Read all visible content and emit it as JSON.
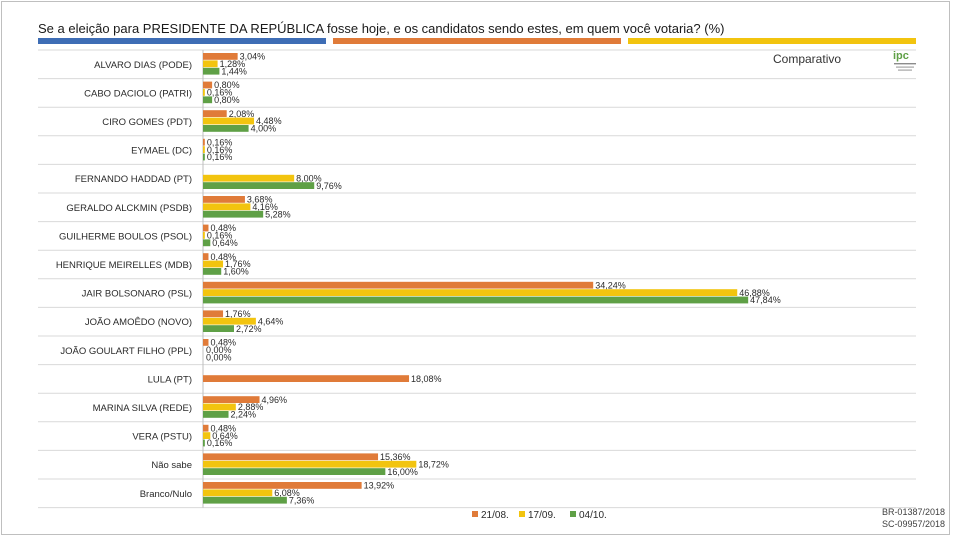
{
  "title": "Se a eleição para PRESIDENTE DA REPÚBLICA fosse hoje, e os candidatos sendo estes, em quem você votaria? (%)",
  "subtitle": "Comparativo",
  "logo": {
    "text": "ipc",
    "icon": "ipc-logo-icon"
  },
  "source_lines": [
    "BR-01387/2018",
    "SC-09957/2018"
  ],
  "stripe_colors": [
    "#3e6db5",
    "#e07b39",
    "#f2c40f"
  ],
  "chart_data": {
    "type": "bar",
    "orientation": "horizontal",
    "title": "Se a eleição para PRESIDENTE DA REPÚBLICA fosse hoje, e os candidatos sendo estes, em quem você votaria? (%)",
    "xlim": [
      0,
      48
    ],
    "grid": false,
    "legend_position": "bottom",
    "categories": [
      "ALVARO DIAS (PODE)",
      "CABO DACIOLO (PATRI)",
      "CIRO GOMES (PDT)",
      "EYMAEL (DC)",
      "FERNANDO HADDAD (PT)",
      "GERALDO ALCKMIN (PSDB)",
      "GUILHERME BOULOS (PSOL)",
      "HENRIQUE MEIRELLES (MDB)",
      "JAIR BOLSONARO (PSL)",
      "JOÃO AMOÊDO (NOVO)",
      "JOÃO GOULART FILHO (PPL)",
      "LULA (PT)",
      "MARINA SILVA (REDE)",
      "VERA (PSTU)",
      "Não sabe",
      "Branco/Nulo"
    ],
    "series": [
      {
        "name": "21/08.",
        "color": "#e07b39",
        "values": [
          3.04,
          0.8,
          2.08,
          0.16,
          null,
          3.68,
          0.48,
          0.48,
          34.24,
          1.76,
          0.48,
          18.08,
          4.96,
          0.48,
          15.36,
          13.92
        ],
        "labels": [
          "3,04%",
          "0,80%",
          "2,08%",
          "0,16%",
          null,
          "3,68%",
          "0,48%",
          "0,48%",
          "34,24%",
          "1,76%",
          "0,48%",
          "18,08%",
          "4,96%",
          "0,48%",
          "15,36%",
          "13,92%"
        ]
      },
      {
        "name": "17/09.",
        "color": "#f2c40f",
        "values": [
          1.28,
          0.16,
          4.48,
          0.16,
          8.0,
          4.16,
          0.16,
          1.76,
          46.88,
          4.64,
          0.0,
          null,
          2.88,
          0.64,
          18.72,
          6.08
        ],
        "labels": [
          "1,28%",
          "0,16%",
          "4,48%",
          "0,16%",
          "8,00%",
          "4,16%",
          "0,16%",
          "1,76%",
          "46,88%",
          "4,64%",
          "0,00%",
          null,
          "2,88%",
          "0,64%",
          "18,72%",
          "6,08%"
        ]
      },
      {
        "name": "04/10.",
        "color": "#5fa046",
        "values": [
          1.44,
          0.8,
          4.0,
          0.16,
          9.76,
          5.28,
          0.64,
          1.6,
          47.84,
          2.72,
          0.0,
          null,
          2.24,
          0.16,
          16.0,
          7.36
        ],
        "labels": [
          "1,44%",
          "0,80%",
          "4,00%",
          "0,16%",
          "9,76%",
          "5,28%",
          "0,64%",
          "1,60%",
          "47,84%",
          "2,72%",
          "0,00%",
          null,
          "2,24%",
          "0,16%",
          "16,00%",
          "7,36%"
        ]
      }
    ]
  }
}
